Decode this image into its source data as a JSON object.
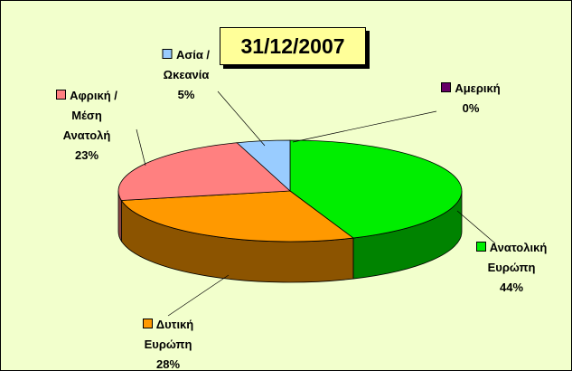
{
  "chart_data": {
    "type": "pie",
    "title": "31/12/2007",
    "categories": [
      "Αμερική",
      "Ανατολική Ευρώπη",
      "Δυτική Ευρώπη",
      "Αφρική / Μέση Ανατολή",
      "Ασία / Ωκεανία"
    ],
    "values": [
      0,
      44,
      28,
      23,
      5
    ],
    "value_labels": [
      "0%",
      "44%",
      "28%",
      "23%",
      "5%"
    ],
    "colors": [
      "#660066",
      "#00ee00",
      "#ff9900",
      "#ff8080",
      "#99ccff"
    ],
    "three_d": true
  }
}
